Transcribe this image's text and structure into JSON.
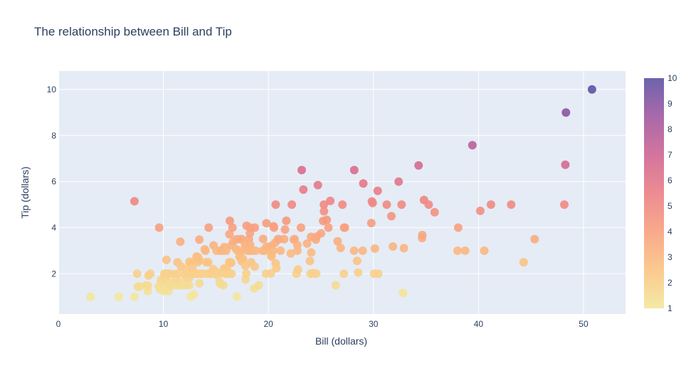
{
  "chart_data": {
    "type": "scatter",
    "title": "The relationship between Bill and Tip",
    "xlabel": "Bill (dollars)",
    "ylabel": "Tip (dollars)",
    "xlim": [
      0,
      54
    ],
    "ylim": [
      0.25,
      10.8
    ],
    "x_ticks": [
      0,
      10,
      20,
      30,
      40,
      50
    ],
    "y_ticks": [
      2,
      4,
      6,
      8,
      10
    ],
    "grid": true,
    "plot_background": "#e5ecf6",
    "colorbar": {
      "min": 1,
      "max": 10,
      "ticks": [
        1,
        2,
        3,
        4,
        5,
        6,
        7,
        8,
        9,
        10
      ],
      "colorscale": [
        "#f3e79b",
        "#fac484",
        "#f8a07e",
        "#eb7f86",
        "#ce6693",
        "#a059a0",
        "#5c53a5"
      ]
    },
    "marker_opacity": 0.9,
    "points": [
      [
        3.07,
        1.0
      ],
      [
        5.75,
        1.0
      ],
      [
        7.25,
        1.0
      ],
      [
        7.25,
        5.15
      ],
      [
        7.51,
        2.0
      ],
      [
        7.56,
        1.44
      ],
      [
        7.74,
        1.44
      ],
      [
        8.35,
        1.5
      ],
      [
        8.51,
        1.25
      ],
      [
        8.52,
        1.48
      ],
      [
        8.58,
        1.92
      ],
      [
        8.77,
        2.0
      ],
      [
        9.55,
        1.45
      ],
      [
        9.6,
        4.0
      ],
      [
        9.68,
        1.32
      ],
      [
        9.78,
        1.73
      ],
      [
        9.94,
        1.56
      ],
      [
        10.07,
        1.25
      ],
      [
        10.07,
        1.83
      ],
      [
        10.09,
        2.0
      ],
      [
        10.27,
        1.71
      ],
      [
        10.29,
        2.6
      ],
      [
        10.33,
        1.67
      ],
      [
        10.33,
        2.0
      ],
      [
        10.34,
        1.66
      ],
      [
        10.34,
        2.0
      ],
      [
        10.51,
        1.25
      ],
      [
        10.59,
        1.61
      ],
      [
        10.63,
        2.0
      ],
      [
        10.65,
        1.5
      ],
      [
        11.02,
        1.98
      ],
      [
        11.17,
        1.5
      ],
      [
        11.24,
        1.76
      ],
      [
        11.35,
        2.5
      ],
      [
        11.38,
        2.0
      ],
      [
        11.59,
        1.5
      ],
      [
        11.61,
        3.39
      ],
      [
        11.69,
        2.31
      ],
      [
        11.87,
        1.63
      ],
      [
        12.02,
        1.97
      ],
      [
        12.03,
        1.5
      ],
      [
        12.16,
        2.2
      ],
      [
        12.26,
        2.0
      ],
      [
        12.43,
        1.8
      ],
      [
        12.46,
        1.5
      ],
      [
        12.48,
        2.52
      ],
      [
        12.54,
        2.5
      ],
      [
        12.6,
        1.0
      ],
      [
        12.66,
        2.5
      ],
      [
        12.69,
        2.0
      ],
      [
        12.74,
        2.01
      ],
      [
        12.76,
        2.23
      ],
      [
        12.9,
        1.1
      ],
      [
        13.0,
        2.0
      ],
      [
        13.03,
        2.0
      ],
      [
        13.13,
        2.0
      ],
      [
        13.16,
        2.75
      ],
      [
        13.27,
        2.5
      ],
      [
        13.28,
        2.72
      ],
      [
        13.37,
        2.0
      ],
      [
        13.39,
        2.61
      ],
      [
        13.42,
        1.58
      ],
      [
        13.42,
        3.48
      ],
      [
        13.51,
        2.0
      ],
      [
        13.81,
        2.0
      ],
      [
        13.94,
        3.06
      ],
      [
        14.0,
        3.0
      ],
      [
        14.07,
        2.5
      ],
      [
        14.15,
        2.0
      ],
      [
        14.26,
        2.5
      ],
      [
        14.31,
        4.0
      ],
      [
        14.48,
        2.0
      ],
      [
        14.52,
        2.0
      ],
      [
        14.73,
        2.2
      ],
      [
        14.78,
        3.23
      ],
      [
        15.01,
        2.09
      ],
      [
        15.04,
        1.96
      ],
      [
        15.06,
        3.0
      ],
      [
        15.36,
        1.64
      ],
      [
        15.38,
        3.0
      ],
      [
        15.42,
        1.57
      ],
      [
        15.48,
        2.02
      ],
      [
        15.53,
        3.0
      ],
      [
        15.69,
        1.5
      ],
      [
        15.69,
        3.0
      ],
      [
        15.77,
        2.23
      ],
      [
        15.81,
        3.16
      ],
      [
        15.95,
        2.0
      ],
      [
        15.98,
        2.03
      ],
      [
        15.98,
        3.0
      ],
      [
        16.0,
        2.0
      ],
      [
        16.04,
        2.24
      ],
      [
        16.21,
        2.0
      ],
      [
        16.27,
        2.5
      ],
      [
        16.29,
        3.71
      ],
      [
        16.31,
        2.0
      ],
      [
        16.32,
        4.3
      ],
      [
        16.4,
        2.5
      ],
      [
        16.45,
        2.47
      ],
      [
        16.47,
        3.23
      ],
      [
        16.49,
        2.0
      ],
      [
        16.58,
        4.0
      ],
      [
        16.66,
        3.4
      ],
      [
        16.93,
        3.07
      ],
      [
        16.97,
        3.5
      ],
      [
        16.99,
        1.01
      ],
      [
        17.07,
        3.0
      ],
      [
        17.26,
        2.74
      ],
      [
        17.29,
        2.71
      ],
      [
        17.31,
        3.5
      ],
      [
        17.46,
        2.54
      ],
      [
        17.47,
        3.5
      ],
      [
        17.51,
        3.0
      ],
      [
        17.59,
        2.64
      ],
      [
        17.78,
        3.27
      ],
      [
        17.81,
        2.34
      ],
      [
        17.82,
        1.75
      ],
      [
        17.89,
        2.0
      ],
      [
        17.92,
        3.08
      ],
      [
        17.92,
        4.08
      ],
      [
        18.04,
        3.0
      ],
      [
        18.15,
        3.5
      ],
      [
        18.24,
        3.76
      ],
      [
        18.26,
        3.25
      ],
      [
        18.28,
        4.0
      ],
      [
        18.29,
        3.0
      ],
      [
        18.35,
        2.5
      ],
      [
        18.43,
        3.0
      ],
      [
        18.64,
        1.36
      ],
      [
        18.69,
        2.31
      ],
      [
        18.71,
        4.0
      ],
      [
        18.78,
        3.0
      ],
      [
        19.08,
        1.5
      ],
      [
        19.44,
        3.0
      ],
      [
        19.49,
        3.51
      ],
      [
        19.65,
        3.0
      ],
      [
        19.77,
        2.0
      ],
      [
        19.81,
        4.19
      ],
      [
        19.82,
        3.18
      ],
      [
        20.08,
        3.15
      ],
      [
        20.23,
        2.01
      ],
      [
        20.27,
        2.83
      ],
      [
        20.29,
        2.75
      ],
      [
        20.29,
        3.21
      ],
      [
        20.45,
        3.0
      ],
      [
        20.49,
        4.06
      ],
      [
        20.53,
        4.0
      ],
      [
        20.65,
        3.35
      ],
      [
        20.69,
        2.45
      ],
      [
        20.69,
        5.0
      ],
      [
        20.76,
        2.24
      ],
      [
        20.9,
        3.5
      ],
      [
        21.01,
        3.5
      ],
      [
        21.16,
        3.0
      ],
      [
        21.5,
        3.5
      ],
      [
        21.58,
        3.92
      ],
      [
        21.7,
        4.3
      ],
      [
        22.12,
        2.88
      ],
      [
        22.23,
        5.0
      ],
      [
        22.42,
        3.48
      ],
      [
        22.49,
        3.5
      ],
      [
        22.67,
        2.0
      ],
      [
        22.75,
        3.25
      ],
      [
        22.76,
        3.0
      ],
      [
        22.82,
        2.18
      ],
      [
        23.1,
        4.0
      ],
      [
        23.17,
        6.5
      ],
      [
        23.33,
        5.65
      ],
      [
        23.68,
        3.31
      ],
      [
        23.95,
        2.55
      ],
      [
        24.01,
        2.0
      ],
      [
        24.06,
        3.6
      ],
      [
        24.08,
        2.92
      ],
      [
        24.27,
        2.03
      ],
      [
        24.52,
        3.48
      ],
      [
        24.55,
        2.0
      ],
      [
        24.59,
        3.61
      ],
      [
        24.71,
        5.85
      ],
      [
        25.0,
        3.75
      ],
      [
        25.21,
        4.29
      ],
      [
        25.28,
        5.0
      ],
      [
        25.29,
        4.71
      ],
      [
        25.56,
        4.34
      ],
      [
        25.71,
        4.0
      ],
      [
        25.89,
        5.16
      ],
      [
        26.41,
        1.5
      ],
      [
        26.59,
        3.41
      ],
      [
        26.88,
        3.12
      ],
      [
        27.05,
        5.0
      ],
      [
        27.18,
        2.0
      ],
      [
        27.2,
        4.0
      ],
      [
        27.28,
        4.0
      ],
      [
        28.15,
        3.0
      ],
      [
        28.17,
        6.5
      ],
      [
        28.44,
        2.56
      ],
      [
        28.55,
        2.05
      ],
      [
        28.97,
        3.0
      ],
      [
        29.03,
        5.92
      ],
      [
        29.8,
        4.2
      ],
      [
        29.85,
        5.14
      ],
      [
        29.93,
        5.07
      ],
      [
        30.06,
        2.0
      ],
      [
        30.14,
        3.09
      ],
      [
        30.4,
        5.6
      ],
      [
        30.46,
        2.0
      ],
      [
        31.27,
        5.0
      ],
      [
        31.71,
        4.5
      ],
      [
        31.85,
        3.18
      ],
      [
        32.4,
        6.0
      ],
      [
        32.68,
        5.0
      ],
      [
        32.83,
        1.17
      ],
      [
        32.9,
        3.11
      ],
      [
        34.3,
        6.7
      ],
      [
        34.63,
        3.55
      ],
      [
        34.65,
        3.68
      ],
      [
        34.81,
        5.2
      ],
      [
        35.26,
        5.0
      ],
      [
        35.83,
        4.67
      ],
      [
        38.01,
        3.0
      ],
      [
        38.07,
        4.0
      ],
      [
        38.73,
        3.0
      ],
      [
        39.42,
        7.58
      ],
      [
        40.17,
        4.73
      ],
      [
        40.55,
        3.0
      ],
      [
        41.19,
        5.0
      ],
      [
        43.11,
        5.0
      ],
      [
        44.3,
        2.5
      ],
      [
        45.35,
        3.5
      ],
      [
        48.17,
        5.0
      ],
      [
        48.27,
        6.73
      ],
      [
        48.33,
        9.0
      ],
      [
        50.81,
        10.0
      ]
    ]
  }
}
